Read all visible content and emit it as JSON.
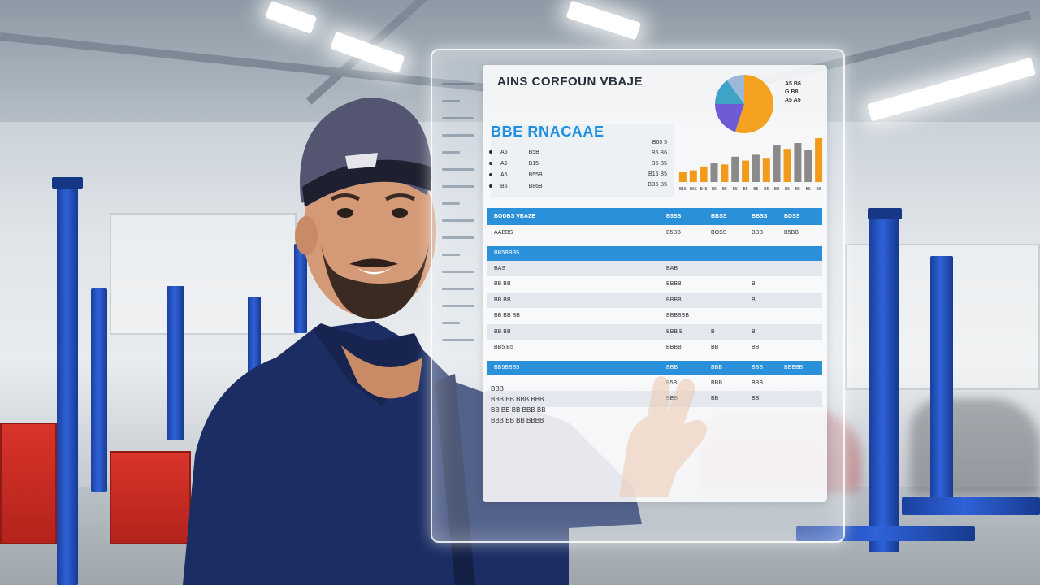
{
  "panel": {
    "title": "AINS CORFOUN VBAJE",
    "section_title": "BBE RNACAAE",
    "pie_legend": [
      "A5 B6",
      "G B8",
      "A5 A5"
    ],
    "info_rows": [
      {
        "label": "A5",
        "value": "B5B"
      },
      {
        "label": "A5",
        "value": "B15"
      },
      {
        "label": "A5",
        "value": "B55B"
      },
      {
        "label": "B5",
        "value": "B86B"
      }
    ],
    "chart_side_labels": [
      "B65 5",
      "B5 B6",
      "B5 B5",
      "B15 B5",
      "BB5 B5"
    ],
    "table": {
      "header": [
        "BODBS VBAZE",
        "B5SS",
        "BBSS",
        "BBSS",
        "BDSS"
      ],
      "rows": [
        {
          "type": "row",
          "cells": [
            "AABBS",
            "B5BB",
            "BOSS",
            "BBB",
            "B5BB"
          ]
        },
        {
          "type": "sec",
          "cells": [
            "BB5BBB5",
            "",
            "",
            "",
            ""
          ]
        },
        {
          "type": "alt",
          "cells": [
            "BAS",
            "BAB",
            "",
            "",
            ""
          ]
        },
        {
          "type": "row",
          "cells": [
            "BB BB",
            "BBBB",
            "",
            "B",
            ""
          ]
        },
        {
          "type": "alt",
          "cells": [
            "BB BB",
            "BBBB",
            "",
            "B",
            ""
          ]
        },
        {
          "type": "row",
          "cells": [
            "BB BB BB",
            "BBBBBB",
            "",
            "",
            ""
          ]
        },
        {
          "type": "alt",
          "cells": [
            "BB BB",
            "BBB B",
            "B",
            "B",
            ""
          ]
        },
        {
          "type": "row",
          "cells": [
            "BB5 B5",
            "BBBB",
            "BB",
            "BB",
            ""
          ]
        },
        {
          "type": "sec",
          "cells": [
            "BB5BBB5",
            "BBB",
            "BBB",
            "BBB",
            "BBBBB"
          ]
        },
        {
          "type": "row",
          "cells": [
            "",
            "B5B",
            "BBB",
            "BBB",
            ""
          ]
        },
        {
          "type": "alt",
          "cells": [
            "",
            "BBB",
            "BB",
            "BB",
            ""
          ]
        }
      ]
    },
    "notes": [
      "BBB",
      "BBB BB BBB BBB",
      "BB BB BB BBB BB",
      "BBB BB BB BBBB"
    ]
  },
  "chart_data": {
    "type": "bar",
    "categories": [
      "B15",
      "B55",
      "B45",
      "B5",
      "B5",
      "B5",
      "B5",
      "B5",
      "B5",
      "BB",
      "B5",
      "B5",
      "B5",
      "B5"
    ],
    "values": [
      10,
      12,
      16,
      20,
      18,
      26,
      22,
      28,
      24,
      38,
      34,
      40,
      33,
      45
    ],
    "colors": [
      "#f29b1a",
      "#f29b1a",
      "#f29b1a",
      "#8c8a88",
      "#f29b1a",
      "#8c8a88",
      "#f29b1a",
      "#8c8a88",
      "#f29b1a",
      "#8c8a88",
      "#f29b1a",
      "#8c8a88",
      "#8c8a88",
      "#f29b1a"
    ],
    "ylim": [
      0,
      50
    ],
    "title": "",
    "xlabel": "",
    "ylabel": ""
  },
  "pie_data": {
    "type": "pie",
    "values": [
      55,
      20,
      15,
      10
    ],
    "colors": [
      "#f4a21f",
      "#6f5bd6",
      "#3fa3c8",
      "#9bb8d8"
    ]
  }
}
